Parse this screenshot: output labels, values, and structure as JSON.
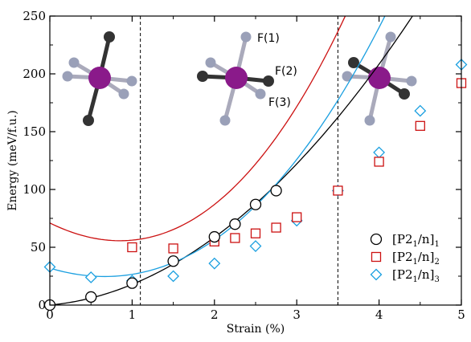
{
  "chart_data": {
    "type": "scatter",
    "xlabel": "Strain (%)",
    "ylabel": "Energy (meV/f.u.)",
    "xlim": [
      0,
      5
    ],
    "ylim": [
      0,
      250
    ],
    "x_ticks": [
      0,
      1,
      2,
      3,
      4,
      5
    ],
    "y_ticks": [
      0,
      50,
      100,
      150,
      200,
      250
    ],
    "grid": false,
    "legend_position": "bottom-right",
    "vertical_lines": [
      1.1,
      3.5
    ],
    "annotations": [
      "F(1)",
      "F(2)",
      "F(3)"
    ],
    "series": [
      {
        "legend_main": "[P2",
        "legend_sub1": "1",
        "legend_mid": "/n]",
        "legend_sub2": "1",
        "marker": "circle",
        "color": "#000000",
        "x": [
          0,
          0.5,
          1.0,
          1.5,
          2.0,
          2.25,
          2.5,
          2.75
        ],
        "y": [
          0,
          7,
          19,
          38,
          59,
          70,
          87,
          99
        ],
        "fit_curve": {
          "x0": 0.0,
          "x1": 4.7,
          "coef": [
            0,
            6.5,
            11.4
          ]
        }
      },
      {
        "legend_main": "[P2",
        "legend_sub1": "1",
        "legend_mid": "/n]",
        "legend_sub2": "2",
        "marker": "square",
        "color": "#cc1111",
        "x": [
          1.0,
          1.5,
          2.0,
          2.25,
          2.5,
          2.75,
          3.0,
          3.5,
          4.0,
          4.5,
          5.0
        ],
        "y": [
          50,
          49,
          55,
          58,
          62,
          67,
          76,
          99,
          124,
          155,
          192
        ],
        "fit_curve": {
          "x0": 0.0,
          "x1": 5.0,
          "coef": [
            71,
            -35,
            18.8,
            1.35
          ]
        }
      },
      {
        "legend_main": "[P2",
        "legend_sub1": "1",
        "legend_mid": "/n]",
        "legend_sub2": "3",
        "marker": "diamond",
        "color": "#1a9fe0",
        "x": [
          0,
          0.5,
          1.0,
          1.5,
          2.0,
          2.5,
          3.0,
          3.5,
          4.0,
          4.5,
          5.0
        ],
        "y": [
          33,
          24,
          21,
          25,
          36,
          51,
          73,
          99,
          132,
          168,
          208
        ],
        "fit_curve": {
          "x0": 0.0,
          "x1": 5.0,
          "coef": [
            32,
            -21.5,
            15.3,
            0.77
          ]
        }
      }
    ]
  }
}
